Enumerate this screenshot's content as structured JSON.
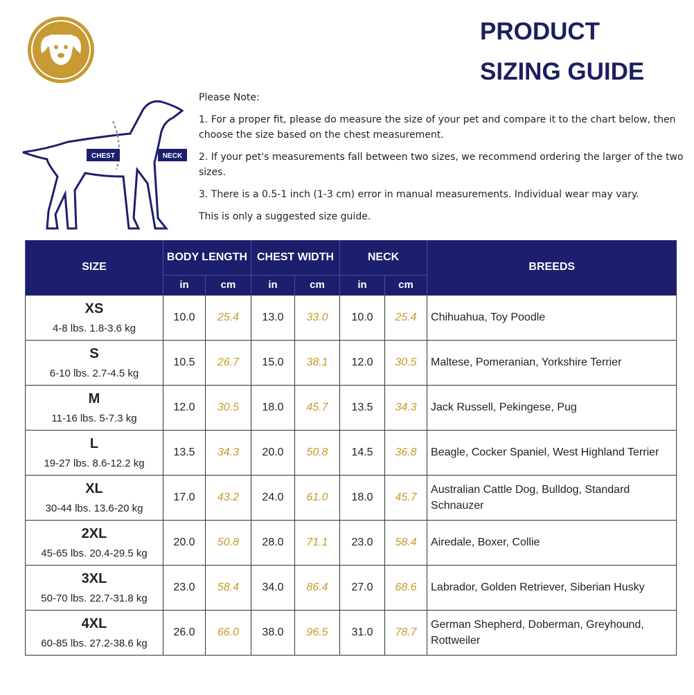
{
  "header": {
    "title_line1": "PRODUCT",
    "title_line2": "SIZING GUIDE"
  },
  "illustration": {
    "chest_label": "CHEST",
    "neck_label": "NECK"
  },
  "notes": {
    "heading": "Please Note:",
    "items": [
      "1. For a proper fit, please do measure the size of your pet and compare it to the chart below, then choose the size based on the chest measurement.",
      "2. If your pet's measurements fall between two sizes, we recommend ordering the larger of the two sizes.",
      "3. There is a 0.5-1 inch (1-3 cm) error in manual measurements. Individual wear may vary."
    ],
    "footer": "This is only a suggested size guide."
  },
  "table": {
    "headers": {
      "size": "SIZE",
      "body_length": "BODY LENGTH",
      "chest_width": "CHEST WIDTH",
      "neck": "NECK",
      "breeds": "BREEDS",
      "units": [
        "in",
        "cm",
        "in",
        "cm",
        "in",
        "cm"
      ]
    },
    "rows": [
      {
        "size": "XS",
        "weight": "4-8 lbs. 1.8-3.6 kg",
        "values": [
          "10.0",
          "25.4",
          "13.0",
          "33.0",
          "10.0",
          "25.4"
        ],
        "breeds": "Chihuahua, Toy Poodle"
      },
      {
        "size": "S",
        "weight": "6-10 lbs. 2.7-4.5 kg",
        "values": [
          "10.5",
          "26.7",
          "15.0",
          "38.1",
          "12.0",
          "30.5"
        ],
        "breeds": "Maltese, Pomeranian, Yorkshire Terrier"
      },
      {
        "size": "M",
        "weight": "11-16 lbs. 5-7.3 kg",
        "values": [
          "12.0",
          "30.5",
          "18.0",
          "45.7",
          "13.5",
          "34.3"
        ],
        "breeds": "Jack Russell, Pekingese, Pug"
      },
      {
        "size": "L",
        "weight": "19-27 lbs. 8.6-12.2 kg",
        "values": [
          "13.5",
          "34.3",
          "20.0",
          "50.8",
          "14.5",
          "36.8"
        ],
        "breeds": "Beagle, Cocker Spaniel, West Highland Terrier"
      },
      {
        "size": "XL",
        "weight": "30-44 lbs. 13.6-20 kg",
        "values": [
          "17.0",
          "43.2",
          "24.0",
          "61.0",
          "18.0",
          "45.7"
        ],
        "breeds": "Australian Cattle Dog, Bulldog, Standard Schnauzer"
      },
      {
        "size": "2XL",
        "weight": "45-65 lbs. 20.4-29.5 kg",
        "values": [
          "20.0",
          "50.8",
          "28.0",
          "71.1",
          "23.0",
          "58.4"
        ],
        "breeds": "Airedale, Boxer, Collie"
      },
      {
        "size": "3XL",
        "weight": "50-70 lbs. 22.7-31.8 kg",
        "values": [
          "23.0",
          "58.4",
          "34.0",
          "86.4",
          "27.0",
          "68.6"
        ],
        "breeds": "Labrador, Golden Retriever, Siberian Husky"
      },
      {
        "size": "4XL",
        "weight": "60-85 lbs. 27.2-38.6 kg",
        "values": [
          "26.0",
          "66.0",
          "38.0",
          "96.5",
          "31.0",
          "78.7"
        ],
        "breeds": "German Shepherd, Doberman, Greyhound, Rottweiler"
      }
    ]
  }
}
